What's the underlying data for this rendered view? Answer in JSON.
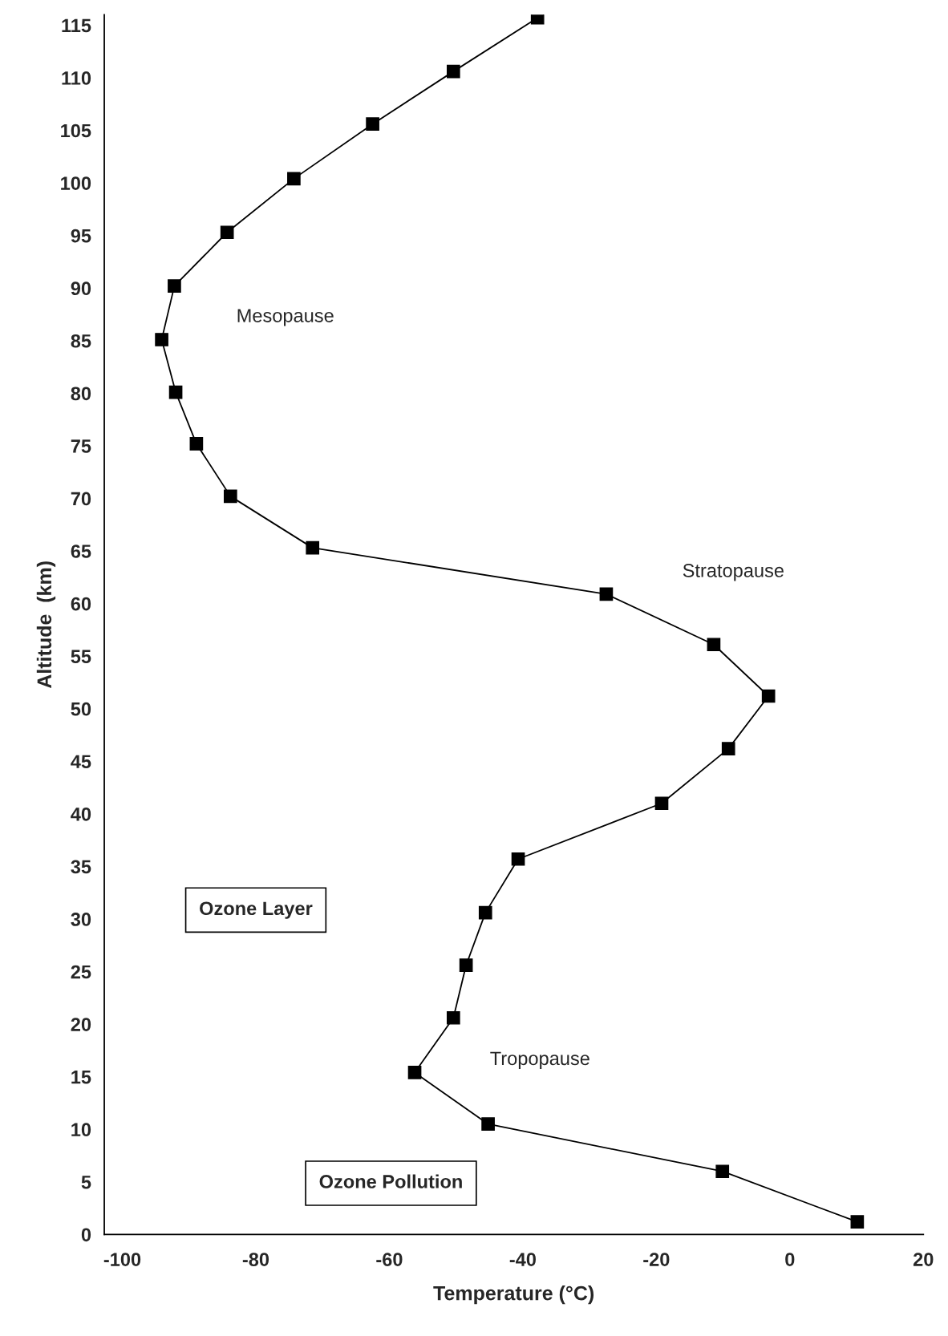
{
  "chart_data": {
    "type": "line",
    "xlabel": "Temperature (°C)",
    "ylabel": "Altitude  (km)",
    "x": [
      -37.8,
      -50.4,
      -62.5,
      -74.3,
      -84.3,
      -92.2,
      -94.1,
      -92.0,
      -88.9,
      -83.8,
      -71.5,
      -27.5,
      -11.4,
      -3.2,
      -9.2,
      -19.2,
      -40.7,
      -45.6,
      -48.5,
      -50.4,
      -56.2,
      -45.2,
      -10.1,
      10.1
    ],
    "series": [
      {
        "color": "#000000",
        "values": [
          115.7,
          110.6,
          105.6,
          100.4,
          95.3,
          90.2,
          85.1,
          80.1,
          75.2,
          70.2,
          65.3,
          60.9,
          56.1,
          51.2,
          46.2,
          41.0,
          35.7,
          30.6,
          25.6,
          20.6,
          15.4,
          10.5,
          6.0,
          1.2
        ]
      }
    ],
    "xlim": [
      -102.7,
      20
    ],
    "ylim": [
      0,
      116
    ],
    "xticks": [
      -100,
      -80,
      -60,
      -40,
      -20,
      0,
      20
    ],
    "yticks": [
      0,
      5,
      10,
      15,
      20,
      25,
      30,
      35,
      40,
      45,
      50,
      55,
      60,
      65,
      70,
      75,
      80,
      85,
      90,
      95,
      100,
      105,
      110,
      115
    ],
    "marker": "square",
    "line_style": "solid",
    "grid": false,
    "legend": false,
    "annotations": [
      "Mesopause",
      "Stratopause",
      "Ozone Layer",
      "Tropopause",
      "Ozone Pollution"
    ]
  }
}
